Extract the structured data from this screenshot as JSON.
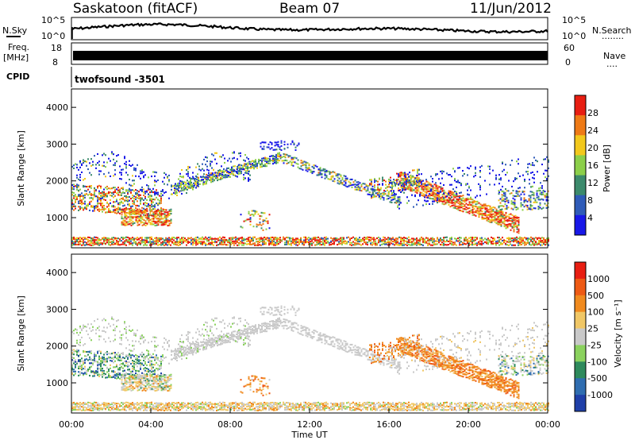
{
  "header": {
    "station": "Saskatoon (fitACF)",
    "beam": "Beam 07",
    "date": "11/Jun/2012"
  },
  "side_labels": {
    "nsky": "N.Sky",
    "nsearch": "N.Search",
    "freq": "Freq.",
    "freq_unit": "[MHz]",
    "nave": "Nave",
    "cpid": "CPID",
    "dots1": "........",
    "dots2": "...."
  },
  "strip_ticks": {
    "noise_left_top": "10^5",
    "noise_left_bottom": "10^0",
    "noise_right_top": "10^5",
    "noise_right_bottom": "10^0",
    "freq_top": "18",
    "freq_bottom": "8",
    "nave_top": "60",
    "nave_bottom": "0"
  },
  "cpid_text": "twofsound -3501",
  "chart_data": [
    {
      "type": "heatmap",
      "name": "power",
      "ylabel": "Slant Range [km]",
      "ylim": [
        180,
        4500
      ],
      "yticks": [
        "1000",
        "2000",
        "3000",
        "4000"
      ],
      "xlabel": "",
      "colorbar_title": "Power [dB]",
      "colorbar_ticks": [
        "4",
        "8",
        "12",
        "16",
        "20",
        "24",
        "28"
      ],
      "colorbar_colors": [
        "#1818e8",
        "#2f5bb8",
        "#3c8a6c",
        "#8ccf4a",
        "#f2c81c",
        "#ee7a16",
        "#e81e12"
      ]
    },
    {
      "type": "heatmap",
      "name": "velocity",
      "ylabel": "Slant Range [km]",
      "ylim": [
        180,
        4500
      ],
      "yticks": [
        "1000",
        "2000",
        "3000",
        "4000"
      ],
      "xlabel": "Time UT",
      "xticks": [
        "00:00",
        "04:00",
        "08:00",
        "12:00",
        "16:00",
        "20:00",
        "00:00"
      ],
      "colorbar_title": "Velocity [m s⁻¹]",
      "colorbar_ticks": [
        "1000",
        "500",
        "100",
        "25",
        "-25",
        "-100",
        "-500",
        "-1000"
      ],
      "colorbar_colors": [
        "#1f3fa8",
        "#2f6db0",
        "#2e8a5c",
        "#8bd25e",
        "#c9c9c9",
        "#f0c766",
        "#f08a1e",
        "#ee5a14",
        "#e81e12"
      ]
    }
  ]
}
